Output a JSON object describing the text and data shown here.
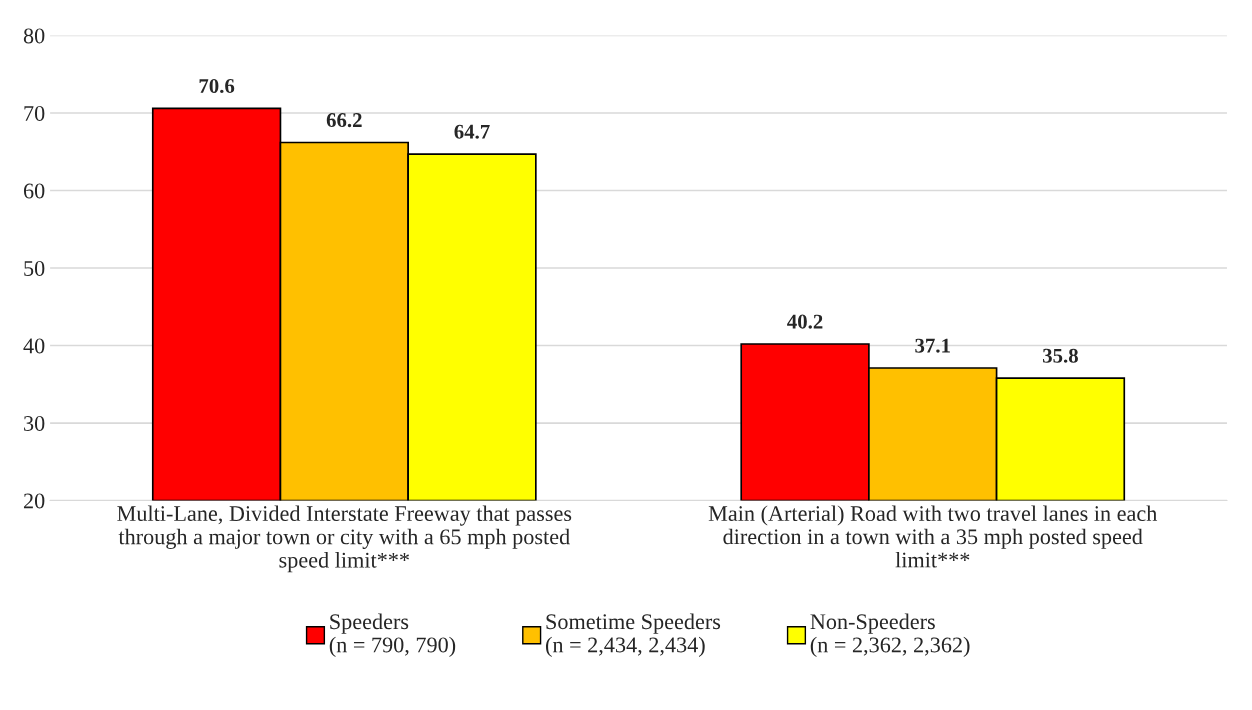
{
  "chart_data": {
    "type": "bar",
    "categories": [
      "Multi-Lane, Divided Interstate Freeway that passes\nthrough a major town or city with a 65 mph posted\nspeed limit***",
      "Main (Arterial) Road with two travel lanes in each\ndirection in a town with a 35 mph posted speed\nlimit***"
    ],
    "series": [
      {
        "name": "Speeders\n(n = 790, 790)",
        "color": "#ff0000",
        "values": [
          70.6,
          40.2
        ]
      },
      {
        "name": "Sometime Speeders\n(n = 2,434, 2,434)",
        "color": "#ffc000",
        "values": [
          66.2,
          37.1
        ]
      },
      {
        "name": "Non-Speeders\n(n = 2,362, 2,362)",
        "color": "#ffff00",
        "values": [
          64.7,
          35.8
        ]
      }
    ],
    "ylim": [
      20,
      80
    ],
    "yticks": [
      20,
      30,
      40,
      50,
      60,
      70,
      80
    ],
    "grid": "y",
    "legend": "bottom",
    "data_labels": true
  }
}
